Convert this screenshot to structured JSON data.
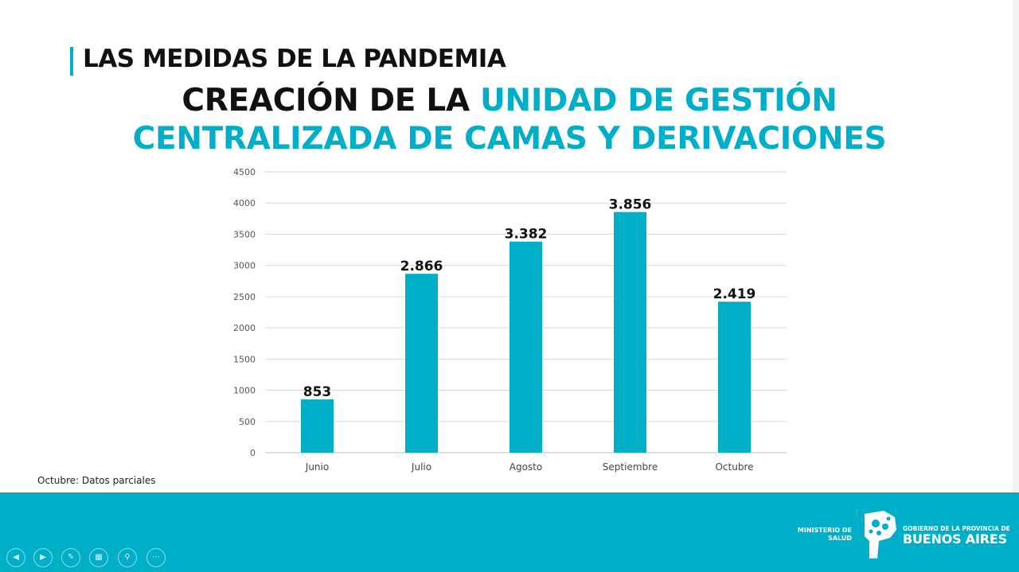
{
  "slide": {
    "kicker": "LAS MEDIDAS DE LA PANDEMIA",
    "title_dark": "CREACIÓN DE LA ",
    "title_accent_1": "UNIDAD DE GESTIÓN",
    "title_accent_2": "CENTRALIZADA DE CAMAS Y DERIVACIONES",
    "note": "Octubre: Datos parciales"
  },
  "chart_data": {
    "type": "bar",
    "categories": [
      "Junio",
      "Julio",
      "Agosto",
      "Septiembre",
      "Octubre"
    ],
    "values": [
      853,
      2866,
      3382,
      3856,
      2419
    ],
    "value_labels": [
      "853",
      "2.866",
      "3.382",
      "3.856",
      "2.419"
    ],
    "yticks": [
      "0",
      "500",
      "1000",
      "1500",
      "2000",
      "2500",
      "3000",
      "3500",
      "4000",
      "4500"
    ],
    "ylim": [
      0,
      4500
    ],
    "grid": true,
    "bar_color": "#00aec7"
  },
  "footer": {
    "ministry_line1": "MINISTERIO DE",
    "ministry_line2": "SALUD",
    "gov_line1": "GOBIERNO DE LA PROVINCIA DE",
    "gov_line2": "BUENOS AIRES",
    "color": "#00aec7"
  },
  "controls": [
    {
      "icon": "previous-icon",
      "glyph": "◀"
    },
    {
      "icon": "next-icon",
      "glyph": "▶"
    },
    {
      "icon": "pen-icon",
      "glyph": "✎"
    },
    {
      "icon": "slides-icon",
      "glyph": "▦"
    },
    {
      "icon": "zoom-icon",
      "glyph": "⚲"
    },
    {
      "icon": "more-icon",
      "glyph": "⋯"
    }
  ]
}
